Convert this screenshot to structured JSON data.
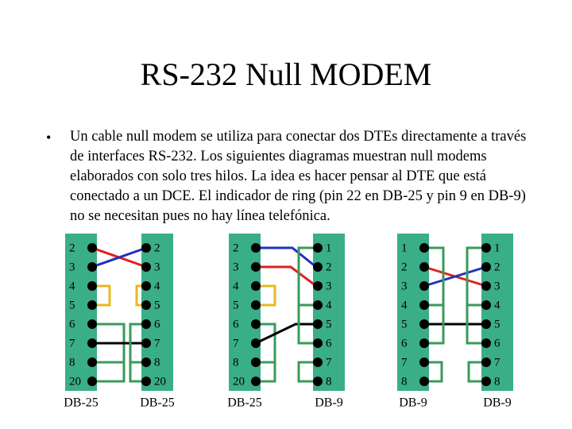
{
  "title": "RS-232 Null MODEM",
  "bullet": "Un cable null modem se utiliza para conectar dos DTEs directamente a través de interfaces RS-232. Los siguientes diagramas muestran null modems elaborados con solo tres hilos. La idea es hacer pensar al DTE que está conectado a un DCE. El indicador de ring (pin 22 en DB-25 y pin 9 en DB-9) no se necesitan pues no hay línea telefónica.",
  "columns": [
    {
      "pins": [
        "2",
        "3",
        "4",
        "5",
        "6",
        "7",
        "8",
        "20"
      ],
      "label": "DB-25"
    },
    {
      "pins": [
        "2",
        "3",
        "4",
        "5",
        "6",
        "7",
        "8",
        "20"
      ],
      "label": "DB-25"
    },
    {
      "pins": [
        "2",
        "3",
        "4",
        "5",
        "6",
        "7",
        "8",
        "20"
      ],
      "label": "DB-25"
    },
    {
      "pins": [
        "1",
        "2",
        "3",
        "4",
        "5",
        "6",
        "7",
        "8"
      ],
      "label": "DB-9"
    },
    {
      "pins": [
        "1",
        "2",
        "3",
        "4",
        "5",
        "6",
        "7",
        "8"
      ],
      "label": "DB-9"
    },
    {
      "pins": [
        "1",
        "2",
        "3",
        "4",
        "5",
        "6",
        "7",
        "8"
      ],
      "label": "DB-9"
    }
  ]
}
